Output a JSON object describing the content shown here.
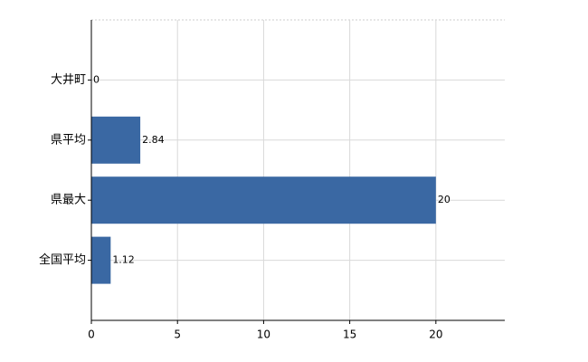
{
  "chart_data": {
    "type": "hbar",
    "categories": [
      "大井町",
      "県平均",
      "県最大",
      "全国平均"
    ],
    "values": [
      0,
      2.84,
      20,
      1.12
    ],
    "color": "#3a68a3",
    "xlim": [
      0,
      24
    ],
    "xticks": [
      0,
      5,
      10,
      15,
      20
    ],
    "grid": true
  }
}
